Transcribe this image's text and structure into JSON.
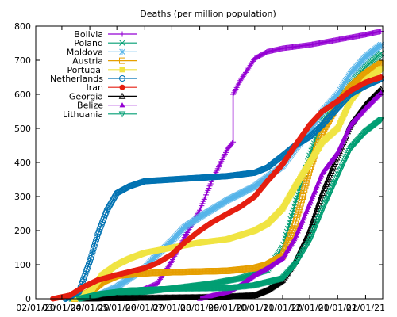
{
  "chart_data": {
    "type": "line",
    "title": "Deaths (per million population)",
    "xlabel": "",
    "ylabel": "",
    "xlim": [
      "2020-02-01",
      "2021-02-20"
    ],
    "ylim": [
      0,
      800
    ],
    "grid": false,
    "legend_position": "top-left",
    "x_ticks": [
      "2020-02-01",
      "2020-03-01",
      "2020-04-01",
      "2020-05-01",
      "2020-06-01",
      "2020-07-01",
      "2020-08-01",
      "2020-09-01",
      "2020-10-01",
      "2020-11-01",
      "2020-12-01",
      "2021-01-01",
      "2021-02-01"
    ],
    "x_tick_labels": [
      "02/01/20",
      "03/01/20",
      "04/01/20",
      "05/01/20",
      "06/01/20",
      "07/01/20",
      "08/01/20",
      "09/01/20",
      "10/01/20",
      "11/01/20",
      "12/01/20",
      "01/01/21",
      "02/01/21"
    ],
    "y_ticks": [
      0,
      100,
      200,
      300,
      400,
      500,
      600,
      700,
      800
    ],
    "series": [
      {
        "name": "Bolivia",
        "color": "#9400d3",
        "marker": "plus",
        "points": [
          [
            "2020-03-20",
            0
          ],
          [
            "2020-04-15",
            2
          ],
          [
            "2020-05-15",
            10
          ],
          [
            "2020-06-15",
            45
          ],
          [
            "2020-07-01",
            110
          ],
          [
            "2020-07-15",
            180
          ],
          [
            "2020-08-01",
            260
          ],
          [
            "2020-08-15",
            350
          ],
          [
            "2020-09-01",
            440
          ],
          [
            "2020-09-07",
            460
          ],
          [
            "2020-09-07",
            600
          ],
          [
            "2020-09-15",
            640
          ],
          [
            "2020-10-01",
            705
          ],
          [
            "2020-10-15",
            725
          ],
          [
            "2020-11-01",
            735
          ],
          [
            "2020-12-01",
            745
          ],
          [
            "2021-01-01",
            760
          ],
          [
            "2021-02-01",
            775
          ],
          [
            "2021-02-18",
            785
          ]
        ]
      },
      {
        "name": "Poland",
        "color": "#009e73",
        "marker": "x",
        "points": [
          [
            "2020-03-12",
            0
          ],
          [
            "2020-04-15",
            5
          ],
          [
            "2020-05-15",
            15
          ],
          [
            "2020-06-15",
            25
          ],
          [
            "2020-07-15",
            35
          ],
          [
            "2020-08-15",
            45
          ],
          [
            "2020-09-15",
            60
          ],
          [
            "2020-10-15",
            85
          ],
          [
            "2020-11-01",
            150
          ],
          [
            "2020-11-15",
            280
          ],
          [
            "2020-12-01",
            420
          ],
          [
            "2020-12-15",
            520
          ],
          [
            "2021-01-01",
            580
          ],
          [
            "2021-01-15",
            630
          ],
          [
            "2021-02-01",
            680
          ],
          [
            "2021-02-18",
            720
          ]
        ]
      },
      {
        "name": "Moldova",
        "color": "#56b4e9",
        "marker": "star",
        "points": [
          [
            "2020-03-20",
            0
          ],
          [
            "2020-04-15",
            15
          ],
          [
            "2020-05-01",
            35
          ],
          [
            "2020-05-15",
            60
          ],
          [
            "2020-06-01",
            90
          ],
          [
            "2020-06-15",
            130
          ],
          [
            "2020-07-01",
            170
          ],
          [
            "2020-07-15",
            210
          ],
          [
            "2020-08-01",
            240
          ],
          [
            "2020-09-01",
            290
          ],
          [
            "2020-10-01",
            330
          ],
          [
            "2020-11-01",
            390
          ],
          [
            "2020-11-15",
            440
          ],
          [
            "2020-12-01",
            490
          ],
          [
            "2020-12-15",
            550
          ],
          [
            "2021-01-01",
            600
          ],
          [
            "2021-01-15",
            660
          ],
          [
            "2021-02-01",
            710
          ],
          [
            "2021-02-18",
            745
          ]
        ]
      },
      {
        "name": "Austria",
        "color": "#e69f00",
        "marker": "square-open",
        "points": [
          [
            "2020-03-15",
            0
          ],
          [
            "2020-04-01",
            20
          ],
          [
            "2020-04-15",
            50
          ],
          [
            "2020-05-01",
            68
          ],
          [
            "2020-06-01",
            75
          ],
          [
            "2020-07-01",
            78
          ],
          [
            "2020-08-01",
            80
          ],
          [
            "2020-09-01",
            82
          ],
          [
            "2020-10-01",
            90
          ],
          [
            "2020-10-15",
            100
          ],
          [
            "2020-11-01",
            125
          ],
          [
            "2020-11-15",
            220
          ],
          [
            "2020-12-01",
            380
          ],
          [
            "2020-12-15",
            490
          ],
          [
            "2021-01-01",
            570
          ],
          [
            "2021-01-15",
            620
          ],
          [
            "2021-02-01",
            660
          ],
          [
            "2021-02-18",
            690
          ]
        ]
      },
      {
        "name": "Portugal",
        "color": "#f0e442",
        "marker": "square-filled",
        "points": [
          [
            "2020-03-15",
            0
          ],
          [
            "2020-04-01",
            20
          ],
          [
            "2020-04-15",
            70
          ],
          [
            "2020-05-01",
            100
          ],
          [
            "2020-05-15",
            118
          ],
          [
            "2020-06-01",
            135
          ],
          [
            "2020-07-01",
            150
          ],
          [
            "2020-08-01",
            165
          ],
          [
            "2020-09-01",
            175
          ],
          [
            "2020-10-01",
            200
          ],
          [
            "2020-10-15",
            220
          ],
          [
            "2020-11-01",
            265
          ],
          [
            "2020-11-15",
            330
          ],
          [
            "2020-12-01",
            400
          ],
          [
            "2020-12-15",
            460
          ],
          [
            "2021-01-01",
            500
          ],
          [
            "2021-01-15",
            580
          ],
          [
            "2021-02-01",
            640
          ],
          [
            "2021-02-18",
            675
          ]
        ]
      },
      {
        "name": "Netherlands",
        "color": "#0072b2",
        "marker": "circle-open",
        "points": [
          [
            "2020-03-05",
            0
          ],
          [
            "2020-03-20",
            20
          ],
          [
            "2020-04-01",
            110
          ],
          [
            "2020-04-10",
            190
          ],
          [
            "2020-04-20",
            260
          ],
          [
            "2020-05-01",
            310
          ],
          [
            "2020-05-15",
            330
          ],
          [
            "2020-06-01",
            345
          ],
          [
            "2020-07-01",
            350
          ],
          [
            "2020-08-01",
            355
          ],
          [
            "2020-09-01",
            360
          ],
          [
            "2020-10-01",
            370
          ],
          [
            "2020-10-15",
            385
          ],
          [
            "2020-11-01",
            420
          ],
          [
            "2020-11-15",
            450
          ],
          [
            "2020-12-01",
            475
          ],
          [
            "2020-12-15",
            510
          ],
          [
            "2021-01-01",
            560
          ],
          [
            "2021-01-15",
            600
          ],
          [
            "2021-02-01",
            625
          ],
          [
            "2021-02-18",
            645
          ]
        ]
      },
      {
        "name": "Iran",
        "color": "#e51e10",
        "marker": "circle-filled",
        "points": [
          [
            "2020-02-20",
            0
          ],
          [
            "2020-03-10",
            10
          ],
          [
            "2020-03-25",
            35
          ],
          [
            "2020-04-10",
            55
          ],
          [
            "2020-05-01",
            70
          ],
          [
            "2020-06-01",
            90
          ],
          [
            "2020-06-15",
            105
          ],
          [
            "2020-07-01",
            130
          ],
          [
            "2020-07-15",
            165
          ],
          [
            "2020-08-01",
            200
          ],
          [
            "2020-08-15",
            225
          ],
          [
            "2020-09-01",
            250
          ],
          [
            "2020-09-15",
            270
          ],
          [
            "2020-10-01",
            300
          ],
          [
            "2020-10-15",
            345
          ],
          [
            "2020-11-01",
            395
          ],
          [
            "2020-11-15",
            450
          ],
          [
            "2020-12-01",
            510
          ],
          [
            "2020-12-15",
            550
          ],
          [
            "2021-01-01",
            580
          ],
          [
            "2021-01-15",
            610
          ],
          [
            "2021-02-01",
            635
          ],
          [
            "2021-02-18",
            650
          ]
        ]
      },
      {
        "name": "Georgia",
        "color": "#000000",
        "marker": "triangle-open",
        "points": [
          [
            "2020-03-25",
            0
          ],
          [
            "2020-06-01",
            2
          ],
          [
            "2020-08-01",
            4
          ],
          [
            "2020-09-01",
            6
          ],
          [
            "2020-10-01",
            10
          ],
          [
            "2020-10-15",
            25
          ],
          [
            "2020-11-01",
            55
          ],
          [
            "2020-11-15",
            110
          ],
          [
            "2020-12-01",
            200
          ],
          [
            "2020-12-15",
            310
          ],
          [
            "2021-01-01",
            420
          ],
          [
            "2021-01-15",
            510
          ],
          [
            "2021-02-01",
            570
          ],
          [
            "2021-02-18",
            615
          ]
        ]
      },
      {
        "name": "Belize",
        "color": "#9400d3",
        "marker": "triangle-filled",
        "points": [
          [
            "2020-08-01",
            0
          ],
          [
            "2020-08-15",
            10
          ],
          [
            "2020-09-01",
            20
          ],
          [
            "2020-09-15",
            40
          ],
          [
            "2020-10-01",
            70
          ],
          [
            "2020-10-15",
            90
          ],
          [
            "2020-11-01",
            120
          ],
          [
            "2020-11-15",
            180
          ],
          [
            "2020-12-01",
            280
          ],
          [
            "2020-12-15",
            370
          ],
          [
            "2021-01-01",
            430
          ],
          [
            "2021-01-15",
            510
          ],
          [
            "2021-02-01",
            560
          ],
          [
            "2021-02-18",
            605
          ]
        ]
      },
      {
        "name": "Lithuania",
        "color": "#009e73",
        "marker": "triangle-down",
        "points": [
          [
            "2020-03-20",
            0
          ],
          [
            "2020-04-15",
            15
          ],
          [
            "2020-05-15",
            25
          ],
          [
            "2020-07-01",
            30
          ],
          [
            "2020-09-01",
            32
          ],
          [
            "2020-10-01",
            40
          ],
          [
            "2020-11-01",
            60
          ],
          [
            "2020-11-15",
            100
          ],
          [
            "2020-12-01",
            170
          ],
          [
            "2020-12-15",
            260
          ],
          [
            "2021-01-01",
            360
          ],
          [
            "2021-01-15",
            440
          ],
          [
            "2021-02-01",
            490
          ],
          [
            "2021-02-18",
            525
          ]
        ]
      }
    ]
  }
}
